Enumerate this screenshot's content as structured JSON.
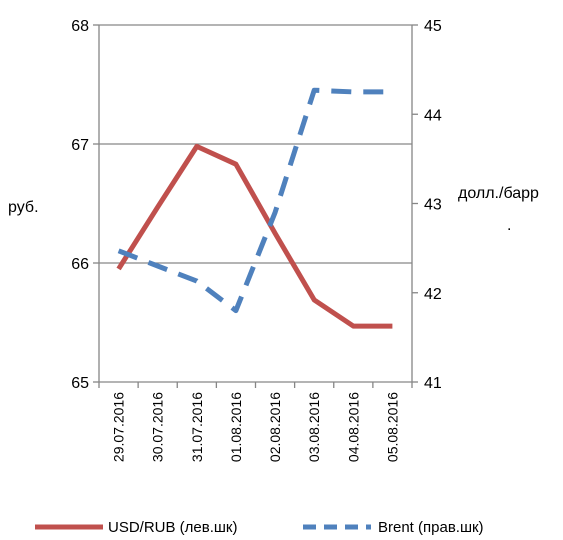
{
  "chart_data": {
    "type": "line",
    "categories": [
      "29.07.2016",
      "30.07.2016",
      "31.07.2016",
      "01.08.2016",
      "02.08.2016",
      "03.08.2016",
      "04.08.2016",
      "05.08.2016"
    ],
    "ylabel_left": "руб.",
    "ylabel_right": "долл./барр.",
    "ylim_left": [
      65,
      68
    ],
    "yticks_left": [
      "65",
      "66",
      "67",
      "68"
    ],
    "ylim_right": [
      41,
      45
    ],
    "yticks_right": [
      "41",
      "42",
      "43",
      "44",
      "45"
    ],
    "grid": "horizontal",
    "legend_position": "bottom",
    "series": [
      {
        "name": "USD/RUB (лев.шк)",
        "axis": "left",
        "style": "solid",
        "color": "#C0504D",
        "values": [
          65.95,
          66.47,
          66.98,
          66.83,
          66.25,
          65.69,
          65.47,
          65.47
        ]
      },
      {
        "name": "Brent (прав.шк)",
        "axis": "right",
        "style": "dashed",
        "color": "#4F81BD",
        "values": [
          42.47,
          42.3,
          42.13,
          41.8,
          42.9,
          44.27,
          44.25,
          44.25
        ]
      }
    ]
  }
}
